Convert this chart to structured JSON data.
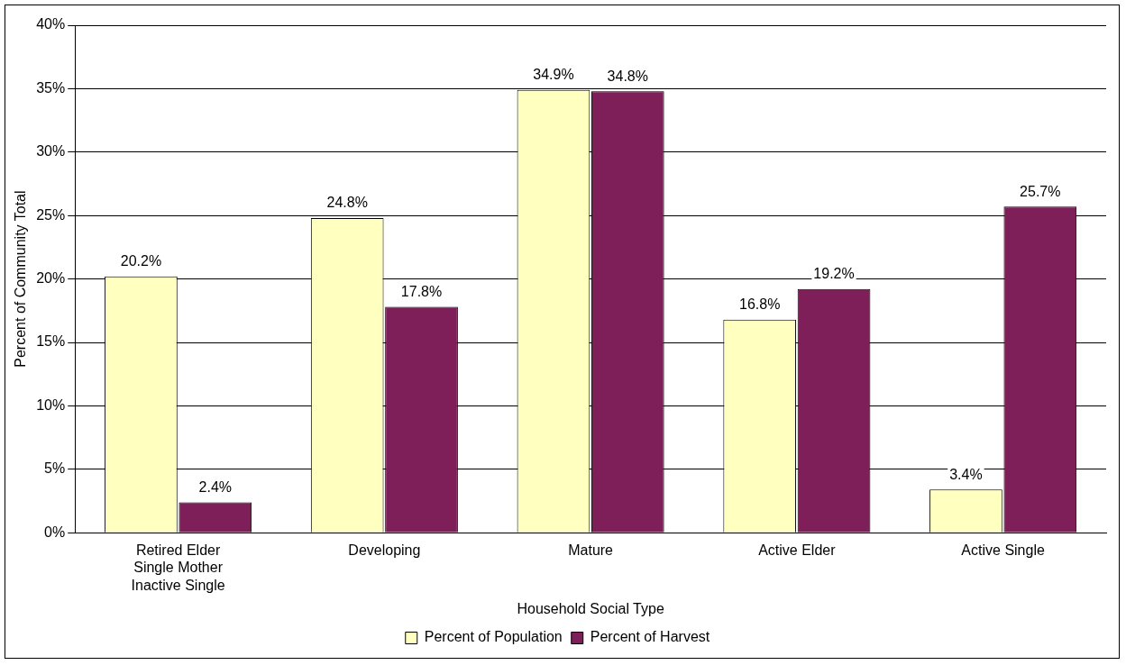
{
  "chart_data": {
    "type": "bar",
    "xlabel": "Household Social Type",
    "ylabel": "Percent of Community Total",
    "categories": [
      "Retired Elder\nSingle Mother\nInactive Single",
      "Developing",
      "Mature",
      "Active Elder",
      "Active Single"
    ],
    "series": [
      {
        "name": "Percent of Population",
        "color": "#ffffc0",
        "values": [
          20.2,
          24.8,
          34.9,
          16.8,
          3.4
        ]
      },
      {
        "name": "Percent of Harvest",
        "color": "#7f1f5a",
        "values": [
          2.4,
          17.8,
          34.8,
          19.2,
          25.7
        ]
      }
    ],
    "value_labels": [
      [
        "20.2%",
        "24.8%",
        "34.9%",
        "16.8%",
        "3.4%"
      ],
      [
        "2.4%",
        "17.8%",
        "34.8%",
        "19.2%",
        "25.7%"
      ]
    ],
    "ylim": [
      0,
      40
    ],
    "yticks": [
      {
        "value": 0,
        "label": "0%"
      },
      {
        "value": 5,
        "label": "5%"
      },
      {
        "value": 10,
        "label": "10%"
      },
      {
        "value": 15,
        "label": "15%"
      },
      {
        "value": 20,
        "label": "20%"
      },
      {
        "value": 25,
        "label": "25%"
      },
      {
        "value": 30,
        "label": "30%"
      },
      {
        "value": 35,
        "label": "35%"
      },
      {
        "value": 40,
        "label": "40%"
      }
    ],
    "grid": "y",
    "legend": "bottom"
  }
}
